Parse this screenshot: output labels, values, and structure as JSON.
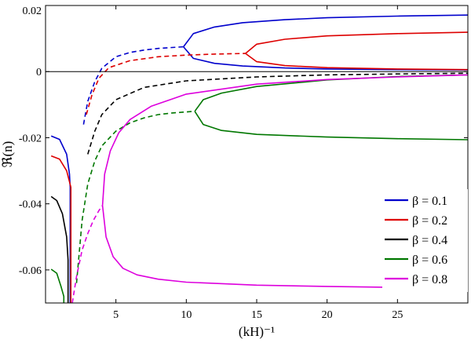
{
  "chart_data": {
    "type": "line",
    "xlabel": "(kH)⁻¹",
    "ylabel": "ℜ(n)",
    "xlim": [
      0,
      30
    ],
    "ylim": [
      -0.07,
      0.02
    ],
    "xticks": [
      5,
      10,
      15,
      20,
      25
    ],
    "xtick_labels": [
      "5",
      "10",
      "15",
      "20",
      "25"
    ],
    "yticks": [
      -0.06,
      -0.04,
      -0.02,
      0,
      0.02
    ],
    "ytick_labels": [
      "-0.06",
      "-0.04",
      "-0.02",
      "0",
      "0.02"
    ],
    "zero_line": true,
    "grid": false,
    "legend_position": "bottom-right",
    "legend": [
      {
        "label": "β = 0.1",
        "color": "#0000cc"
      },
      {
        "label": "β = 0.2",
        "color": "#dd0000"
      },
      {
        "label": "β = 0.4",
        "color": "#000000"
      },
      {
        "label": "β = 0.6",
        "color": "#007700"
      },
      {
        "label": "β = 0.8",
        "color": "#dd00dd"
      }
    ],
    "series": [
      {
        "name": "β = 0.1",
        "color": "#0000cc",
        "segments": [
          {
            "style": "solid",
            "x": [
              0.4,
              1.0,
              1.5,
              1.7,
              1.75,
              1.75
            ],
            "y": [
              -0.0195,
              -0.0205,
              -0.025,
              -0.031,
              -0.035,
              -0.07
            ]
          },
          {
            "style": "dashed",
            "x": [
              2.7,
              3.0,
              3.5,
              4.0,
              5.0,
              6.0,
              7.0,
              8.0,
              9.0,
              9.8
            ],
            "y": [
              -0.016,
              -0.009,
              -0.003,
              0.001,
              0.0045,
              0.0058,
              0.0065,
              0.007,
              0.0073,
              0.0075
            ]
          },
          {
            "style": "solid",
            "x": [
              9.8,
              10.5,
              12,
              14,
              17,
              20,
              25,
              30
            ],
            "y": [
              0.0075,
              0.0115,
              0.0135,
              0.0148,
              0.0157,
              0.0163,
              0.0168,
              0.0171
            ]
          },
          {
            "style": "solid",
            "x": [
              9.8,
              10.5,
              12,
              14,
              17,
              20,
              25,
              30
            ],
            "y": [
              0.0075,
              0.004,
              0.0025,
              0.0017,
              0.0011,
              0.0008,
              0.0006,
              0.0005
            ]
          }
        ]
      },
      {
        "name": "β = 0.2",
        "color": "#dd0000",
        "segments": [
          {
            "style": "solid",
            "x": [
              0.4,
              1.0,
              1.5,
              1.8,
              1.8
            ],
            "y": [
              -0.0255,
              -0.0265,
              -0.03,
              -0.035,
              -0.07
            ]
          },
          {
            "style": "dashed",
            "x": [
              2.9,
              3.3,
              3.8,
              4.5,
              6.0,
              8.0,
              10,
              12,
              14.2
            ],
            "y": [
              -0.013,
              -0.007,
              -0.002,
              0.0012,
              0.0033,
              0.0045,
              0.005,
              0.0053,
              0.0055
            ]
          },
          {
            "style": "solid",
            "x": [
              14.2,
              15,
              17,
              20,
              25,
              30
            ],
            "y": [
              0.0055,
              0.0083,
              0.0098,
              0.0108,
              0.0115,
              0.0119
            ]
          },
          {
            "style": "solid",
            "x": [
              14.2,
              15,
              17,
              20,
              25,
              30
            ],
            "y": [
              0.0055,
              0.003,
              0.0018,
              0.0012,
              0.0008,
              0.0006
            ]
          }
        ]
      },
      {
        "name": "β = 0.4",
        "color": "#000000",
        "segments": [
          {
            "style": "solid",
            "x": [
              0.4,
              0.8,
              1.2,
              1.5,
              1.6,
              1.6
            ],
            "y": [
              -0.0378,
              -0.039,
              -0.043,
              -0.05,
              -0.057,
              -0.07
            ]
          },
          {
            "style": "dashed",
            "x": [
              3.0,
              3.5,
              4.0,
              5.0,
              7.0,
              10,
              15,
              20,
              25,
              30
            ],
            "y": [
              -0.025,
              -0.018,
              -0.013,
              -0.0085,
              -0.0048,
              -0.0028,
              -0.0016,
              -0.001,
              -0.0007,
              -0.0005
            ]
          }
        ]
      },
      {
        "name": "β = 0.6",
        "color": "#007700",
        "segments": [
          {
            "style": "solid",
            "x": [
              0.4,
              0.8,
              1.1,
              1.3,
              1.3
            ],
            "y": [
              -0.0598,
              -0.061,
              -0.065,
              -0.068,
              -0.07
            ]
          },
          {
            "style": "dashed",
            "x": [
              2.2,
              2.6,
              3.0,
              3.5,
              4.0,
              5.0,
              6.0,
              7.0,
              8.0,
              9.0,
              10.6
            ],
            "y": [
              -0.064,
              -0.045,
              -0.034,
              -0.027,
              -0.0225,
              -0.018,
              -0.0155,
              -0.014,
              -0.013,
              -0.0125,
              -0.012
            ]
          },
          {
            "style": "solid",
            "x": [
              10.6,
              11.2,
              12.5,
              15,
              20,
              25,
              30
            ],
            "y": [
              -0.012,
              -0.016,
              -0.0178,
              -0.019,
              -0.0198,
              -0.0203,
              -0.0206
            ]
          },
          {
            "style": "solid",
            "x": [
              10.6,
              11.2,
              12.5,
              15,
              20,
              25,
              30
            ],
            "y": [
              -0.012,
              -0.0085,
              -0.0065,
              -0.0045,
              -0.0025,
              -0.0015,
              -0.001
            ]
          }
        ]
      },
      {
        "name": "β = 0.8",
        "color": "#dd00dd",
        "segments": [
          {
            "style": "dashed",
            "x": [
              1.9,
              2.2,
              2.6,
              3.0,
              3.4,
              3.8,
              4.05
            ],
            "y": [
              -0.07,
              -0.062,
              -0.054,
              -0.049,
              -0.045,
              -0.042,
              -0.0405
            ]
          },
          {
            "style": "solid",
            "x": [
              4.05,
              4.2,
              4.6,
              5.2,
              6.0,
              7.5,
              10,
              15,
              20,
              25,
              30
            ],
            "y": [
              -0.0405,
              -0.031,
              -0.024,
              -0.0185,
              -0.0145,
              -0.0105,
              -0.0068,
              -0.0038,
              -0.0024,
              -0.0016,
              -0.001
            ]
          },
          {
            "style": "solid",
            "x": [
              4.05,
              4.3,
              4.8,
              5.5,
              6.5,
              8,
              10,
              15,
              20,
              25,
              30
            ],
            "y": [
              -0.0405,
              -0.05,
              -0.056,
              -0.0595,
              -0.0615,
              -0.0628,
              -0.0637,
              -0.0646,
              -0.065,
              -0.0653,
              -0.0655
            ]
          }
        ]
      }
    ]
  }
}
